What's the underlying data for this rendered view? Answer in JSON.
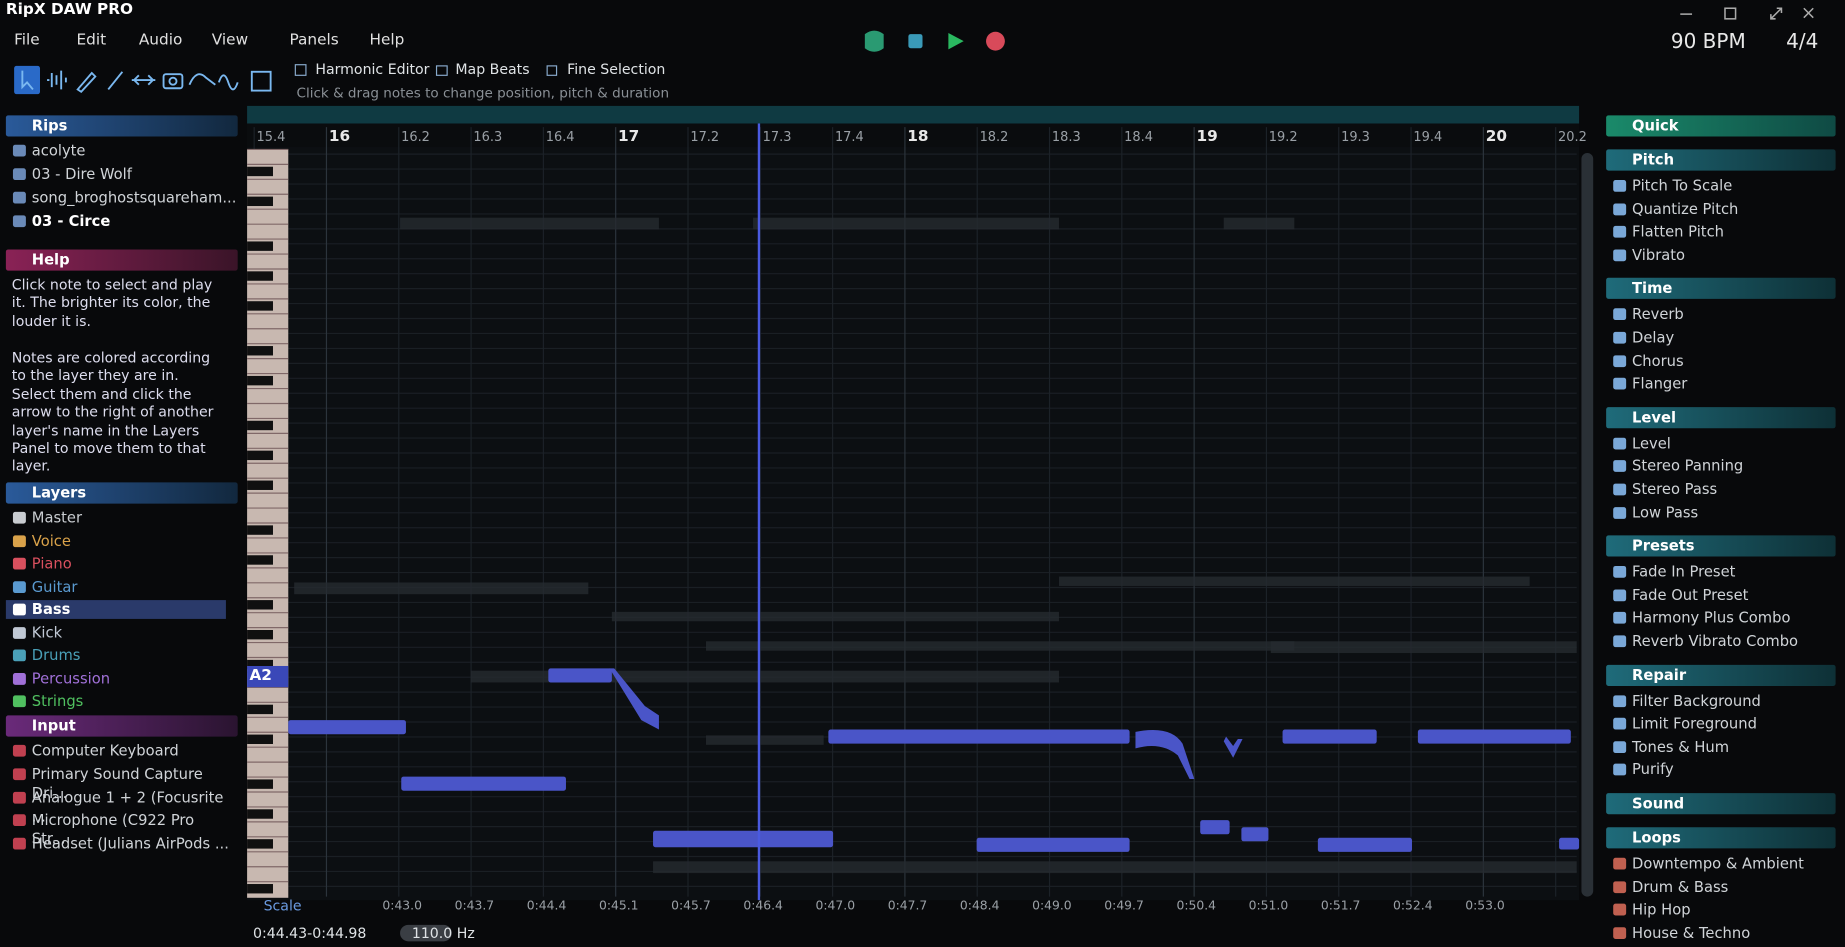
{
  "app": {
    "title": "RipX DAW PRO",
    "bpm": "90 BPM",
    "time_signature": "4/4"
  },
  "menu": [
    "File",
    "Edit",
    "Audio",
    "View",
    "Panels",
    "Help"
  ],
  "toolbar": {
    "options": [
      "Harmonic Editor",
      "Map Beats",
      "Fine Selection"
    ],
    "hint": "Click & drag notes to change position, pitch & duration"
  },
  "left_panel": [
    {
      "title": "Rips",
      "items": [
        "acolyte",
        "03 - Dire Wolf",
        "song_broghostsquareham...",
        "03 - Circe"
      ]
    },
    {
      "title": "Help",
      "paragraphs": [
        "Click note to select and play it. The brighter its color, the louder it is.",
        "Notes are colored according to the layer they are in. Select them and click the arrow to the right of another layer's name in the Layers Panel to move them to that layer."
      ]
    },
    {
      "title": "Layers",
      "items": [
        "Master",
        "Voice",
        "Piano",
        "Guitar",
        "Bass",
        "Kick",
        "Drums",
        "Percussion",
        "Strings"
      ]
    },
    {
      "title": "Input",
      "items": [
        "Computer Keyboard",
        "Primary Sound Capture Dri...",
        "Analogue 1 + 2 (Focusrite ...",
        "Microphone (C922 Pro Str...",
        "Headset (Julians AirPods ..."
      ]
    }
  ],
  "editor": {
    "bar_labels": [
      "15.4",
      "16",
      "16.2",
      "16.3",
      "16.4",
      "17",
      "17.2",
      "17.3",
      "17.4",
      "18",
      "18.2",
      "18.3",
      "18.4",
      "19",
      "19.2",
      "19.3",
      "19.4",
      "20",
      "20.2"
    ],
    "time_labels": [
      "0:43.0",
      "0:43.7",
      "0:44.4",
      "0:45.1",
      "0:45.7",
      "0:46.4",
      "0:47.0",
      "0:47.7",
      "0:48.4",
      "0:49.0",
      "0:49.7",
      "0:50.4",
      "0:51.0",
      "0:51.7",
      "0:52.4",
      "0:53.0"
    ],
    "scale_label": "Scale",
    "note_label": "A2",
    "selection": "0:44.43-0:44.98",
    "frequency": "110.0 Hz"
  },
  "right_panel": [
    {
      "title": "Quick",
      "items": []
    },
    {
      "title": "Pitch",
      "items": [
        "Pitch To Scale",
        "Quantize Pitch",
        "Flatten Pitch",
        "Vibrato"
      ]
    },
    {
      "title": "Time",
      "items": [
        "Reverb",
        "Delay",
        "Chorus",
        "Flanger"
      ]
    },
    {
      "title": "Level",
      "items": [
        "Level",
        "Stereo Panning",
        "Stereo Pass",
        "Low Pass"
      ]
    },
    {
      "title": "Presets",
      "items": [
        "Fade In Preset",
        "Fade Out Preset",
        "Harmony Plus Combo",
        "Reverb Vibrato Combo"
      ]
    },
    {
      "title": "Repair",
      "items": [
        "Filter Background",
        "Limit Foreground",
        "Tones & Hum",
        "Purify"
      ]
    },
    {
      "title": "Sound",
      "items": []
    },
    {
      "title": "Loops",
      "items": [
        "Downtempo & Ambient",
        "Drum & Bass",
        "Hip Hop",
        "House & Techno"
      ]
    }
  ]
}
